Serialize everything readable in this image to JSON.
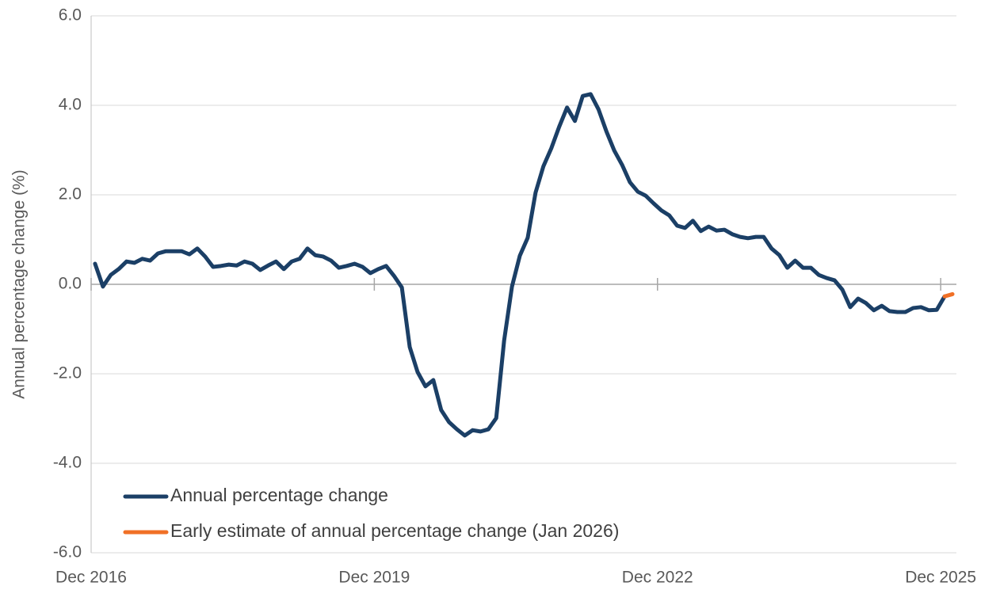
{
  "chart_data": {
    "type": "line",
    "y_label": "Annual percentage change (%)",
    "categories": [
      "Dec 2016",
      null,
      null,
      null,
      null,
      null,
      null,
      null,
      null,
      null,
      null,
      null,
      null,
      null,
      null,
      null,
      null,
      null,
      null,
      null,
      null,
      null,
      null,
      null,
      null,
      null,
      null,
      null,
      null,
      null,
      null,
      null,
      null,
      null,
      null,
      null,
      "Dec 2019",
      null,
      null,
      null,
      null,
      null,
      null,
      null,
      null,
      null,
      null,
      null,
      null,
      null,
      null,
      null,
      null,
      null,
      null,
      null,
      null,
      null,
      null,
      null,
      null,
      null,
      null,
      null,
      null,
      null,
      null,
      null,
      null,
      null,
      null,
      null,
      "Dec 2022",
      null,
      null,
      null,
      null,
      null,
      null,
      null,
      null,
      null,
      null,
      null,
      null,
      null,
      null,
      null,
      null,
      null,
      null,
      null,
      null,
      null,
      null,
      null,
      null,
      null,
      null,
      null,
      null,
      null,
      null,
      null,
      null,
      null,
      null,
      null,
      "Dec 2025",
      null
    ],
    "series": [
      {
        "name": "Annual percentage change",
        "color": "#1b3f66",
        "values": [
          0.46,
          -0.05,
          0.21,
          0.34,
          0.51,
          0.48,
          0.57,
          0.53,
          0.69,
          0.74,
          0.74,
          0.74,
          0.67,
          0.8,
          0.62,
          0.39,
          0.41,
          0.44,
          0.42,
          0.51,
          0.46,
          0.32,
          0.42,
          0.51,
          0.34,
          0.51,
          0.57,
          0.8,
          0.65,
          0.62,
          0.53,
          0.37,
          0.41,
          0.46,
          0.39,
          0.25,
          0.34,
          0.41,
          0.19,
          -0.07,
          -1.4,
          -1.96,
          -2.28,
          -2.14,
          -2.81,
          -3.08,
          -3.24,
          -3.38,
          -3.26,
          -3.29,
          -3.24,
          -2.99,
          -1.26,
          -0.05,
          0.64,
          1.04,
          2.05,
          2.64,
          3.04,
          3.52,
          3.95,
          3.65,
          4.21,
          4.25,
          3.91,
          3.42,
          2.99,
          2.67,
          2.28,
          2.07,
          1.98,
          1.81,
          1.65,
          1.54,
          1.31,
          1.26,
          1.42,
          1.19,
          1.29,
          1.2,
          1.22,
          1.12,
          1.06,
          1.03,
          1.06,
          1.06,
          0.8,
          0.65,
          0.37,
          0.53,
          0.37,
          0.37,
          0.21,
          0.14,
          0.09,
          -0.12,
          -0.51,
          -0.32,
          -0.42,
          -0.58,
          -0.48,
          -0.6,
          -0.62,
          -0.62,
          -0.53,
          -0.51,
          -0.58,
          -0.57,
          -0.27,
          null
        ]
      },
      {
        "name": "Early estimate of annual percentage change (Jan 2026)",
        "color": "#f07026",
        "values": [
          null,
          null,
          null,
          null,
          null,
          null,
          null,
          null,
          null,
          null,
          null,
          null,
          null,
          null,
          null,
          null,
          null,
          null,
          null,
          null,
          null,
          null,
          null,
          null,
          null,
          null,
          null,
          null,
          null,
          null,
          null,
          null,
          null,
          null,
          null,
          null,
          null,
          null,
          null,
          null,
          null,
          null,
          null,
          null,
          null,
          null,
          null,
          null,
          null,
          null,
          null,
          null,
          null,
          null,
          null,
          null,
          null,
          null,
          null,
          null,
          null,
          null,
          null,
          null,
          null,
          null,
          null,
          null,
          null,
          null,
          null,
          null,
          null,
          null,
          null,
          null,
          null,
          null,
          null,
          null,
          null,
          null,
          null,
          null,
          null,
          null,
          null,
          null,
          null,
          null,
          null,
          null,
          null,
          null,
          null,
          null,
          null,
          null,
          null,
          null,
          null,
          null,
          null,
          null,
          null,
          null,
          null,
          null,
          -0.27,
          -0.22
        ]
      }
    ],
    "ylim": [
      -6,
      6
    ],
    "yticks": [
      {
        "value": -6,
        "label": "-6.0"
      },
      {
        "value": -4,
        "label": "-4.0"
      },
      {
        "value": -2,
        "label": "-2.0"
      },
      {
        "value": 0,
        "label": "0.0"
      },
      {
        "value": 2,
        "label": "2.0"
      },
      {
        "value": 4,
        "label": "4.0"
      },
      {
        "value": 6,
        "label": "6.0"
      }
    ],
    "grid": true,
    "legend": "lower left"
  }
}
